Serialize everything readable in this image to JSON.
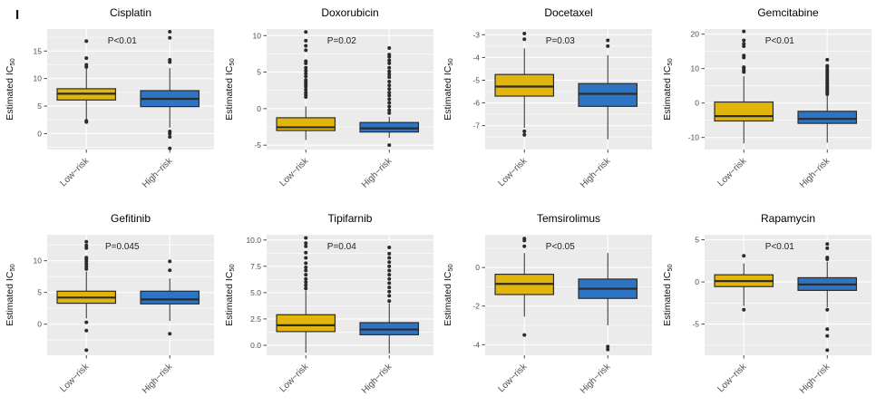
{
  "figure": {
    "panel_label": "I",
    "ylabel_main": "Estimated IC",
    "ylabel_sub": "50",
    "categories": [
      "Low−risk",
      "High−risk"
    ]
  },
  "colors": {
    "low_risk_fill": "#E2B50D",
    "high_risk_fill": "#2E74C4",
    "box_stroke": "#2B2B2B",
    "panel_bg": "#EBEBEB",
    "grid_major": "#FFFFFF",
    "grid_minor": "#F5F5F5",
    "axis_text": "#4D4D4D",
    "title_text": "#000000",
    "p_text": "#222222",
    "outlier": "#2B2B2B"
  },
  "chart_data": [
    {
      "type": "box",
      "title": "Cisplatin",
      "p_label": "P<0.01",
      "ylabel": "Estimated IC50",
      "categories": [
        "Low−risk",
        "High−risk"
      ],
      "ylim": [
        -2.9,
        19.0
      ],
      "ytick_values": [
        0,
        5,
        10,
        15
      ],
      "ytick_labels": [
        "0",
        "5",
        "10",
        "15"
      ],
      "series": [
        {
          "name": "Low−risk",
          "whisker_low": 2.5,
          "q1": 6.1,
          "median": 7.25,
          "q3": 8.15,
          "whisker_high": 11.8,
          "outliers": [
            12.1,
            12.5,
            13.7,
            16.8,
            2.3,
            2.1
          ]
        },
        {
          "name": "High−risk",
          "whisker_low": 1.1,
          "q1": 4.9,
          "median": 6.3,
          "q3": 7.8,
          "whisker_high": 11.9,
          "outliers": [
            13.0,
            13.4,
            17.4,
            18.5,
            0.4,
            0.0,
            -0.6,
            -2.7
          ]
        }
      ]
    },
    {
      "type": "box",
      "title": "Doxorubicin",
      "p_label": "P=0.02",
      "ylabel": "Estimated IC50",
      "categories": [
        "Low−risk",
        "High−risk"
      ],
      "ylim": [
        -5.6,
        10.9
      ],
      "ytick_values": [
        -5,
        0,
        5,
        10
      ],
      "ytick_labels": [
        "-5",
        "0",
        "5",
        "10"
      ],
      "series": [
        {
          "name": "Low−risk",
          "whisker_low": -4.3,
          "q1": -3.0,
          "median": -2.55,
          "q3": -1.25,
          "whisker_high": 0.3,
          "outliers": [
            1.6,
            1.9,
            2.2,
            2.6,
            3.0,
            3.3,
            3.6,
            3.9,
            4.4,
            4.8,
            5.2,
            5.6,
            6.2,
            6.5,
            8.0,
            8.6,
            9.3,
            10.5
          ]
        },
        {
          "name": "High−risk",
          "whisker_low": -4.0,
          "q1": -3.2,
          "median": -2.7,
          "q3": -1.9,
          "whisker_high": -1.1,
          "outliers": [
            -5.0,
            -0.6,
            -0.2,
            0.3,
            0.8,
            1.3,
            1.8,
            2.2,
            2.7,
            3.2,
            3.7,
            4.3,
            4.7,
            5.1,
            5.6,
            6.2,
            6.6,
            7.1,
            7.4,
            8.3
          ]
        }
      ]
    },
    {
      "type": "box",
      "title": "Docetaxel",
      "p_label": "P=0.03",
      "ylabel": "Estimated IC50",
      "categories": [
        "Low−risk",
        "High−risk"
      ],
      "ylim": [
        -8.05,
        -2.75
      ],
      "ytick_values": [
        -7,
        -6,
        -5,
        -4,
        -3
      ],
      "ytick_labels": [
        "-7",
        "-6",
        "-5",
        "-4",
        "-3"
      ],
      "series": [
        {
          "name": "Low−risk",
          "whisker_low": -7.1,
          "q1": -5.7,
          "median": -5.28,
          "q3": -4.75,
          "whisker_high": -3.6,
          "outliers": [
            -2.95,
            -3.2,
            -7.25,
            -7.4
          ]
        },
        {
          "name": "High−risk",
          "whisker_low": -7.6,
          "q1": -6.15,
          "median": -5.6,
          "q3": -5.15,
          "whisker_high": -3.9,
          "outliers": [
            -3.25,
            -3.5
          ]
        }
      ]
    },
    {
      "type": "box",
      "title": "Gemcitabine",
      "p_label": "P<0.01",
      "ylabel": "Estimated IC50",
      "categories": [
        "Low−risk",
        "High−risk"
      ],
      "ylim": [
        -13.5,
        21.5
      ],
      "ytick_values": [
        -10,
        0,
        10,
        20
      ],
      "ytick_labels": [
        "-10",
        "0",
        "10",
        "20"
      ],
      "series": [
        {
          "name": "Low−risk",
          "whisker_low": -11.7,
          "q1": -5.2,
          "median": -3.8,
          "q3": 0.3,
          "whisker_high": 7.8,
          "outliers": [
            9.0,
            9.4,
            10.0,
            10.4,
            13.2,
            13.8,
            16.5,
            17.2,
            18.2,
            20.8
          ]
        },
        {
          "name": "High−risk",
          "whisker_low": -11.5,
          "q1": -5.9,
          "median": -4.6,
          "q3": -2.4,
          "whisker_high": 2.2,
          "outliers": [
            2.6,
            3.0,
            3.5,
            4.0,
            4.5,
            5.0,
            5.5,
            6.0,
            6.6,
            7.2,
            7.8,
            8.4,
            9.0,
            9.6,
            10.3,
            10.8,
            12.6
          ]
        }
      ]
    },
    {
      "type": "box",
      "title": "Gefitinib",
      "p_label": "P=0.045",
      "ylabel": "Estimated IC50",
      "categories": [
        "Low−risk",
        "High−risk"
      ],
      "ylim": [
        -4.9,
        14.1
      ],
      "ytick_values": [
        0,
        5,
        10
      ],
      "ytick_labels": [
        "0",
        "5",
        "10"
      ],
      "series": [
        {
          "name": "Low−risk",
          "whisker_low": 0.9,
          "q1": 3.3,
          "median": 4.2,
          "q3": 5.2,
          "whisker_high": 8.3,
          "outliers": [
            8.7,
            9.1,
            9.5,
            9.9,
            10.2,
            10.5,
            12.0,
            12.4,
            13.0,
            0.3,
            -1.0,
            -4.1
          ]
        },
        {
          "name": "High−risk",
          "whisker_low": 0.5,
          "q1": 3.2,
          "median": 3.9,
          "q3": 5.2,
          "whisker_high": 7.2,
          "outliers": [
            9.9,
            8.5,
            -1.5
          ]
        }
      ]
    },
    {
      "type": "box",
      "title": "Tipifarnib",
      "p_label": "P=0.04",
      "ylabel": "Estimated IC50",
      "categories": [
        "Low−risk",
        "High−risk"
      ],
      "ylim": [
        -0.95,
        10.5
      ],
      "ytick_values": [
        0,
        2.5,
        5,
        7.5,
        10
      ],
      "ytick_labels": [
        "0.0",
        "2.5",
        "5.0",
        "7.5",
        "10.0"
      ],
      "series": [
        {
          "name": "Low−risk",
          "whisker_low": -0.7,
          "q1": 1.3,
          "median": 1.9,
          "q3": 2.9,
          "whisker_high": 5.2,
          "outliers": [
            5.4,
            5.7,
            6.0,
            6.3,
            6.7,
            7.1,
            7.4,
            7.8,
            8.3,
            8.8,
            9.4,
            9.7,
            10.2
          ]
        },
        {
          "name": "High−risk",
          "whisker_low": -0.8,
          "q1": 1.0,
          "median": 1.5,
          "q3": 2.15,
          "whisker_high": 4.0,
          "outliers": [
            4.2,
            4.7,
            5.1,
            5.5,
            5.9,
            6.3,
            6.7,
            7.1,
            7.5,
            7.9,
            8.3,
            8.7,
            9.3
          ]
        }
      ]
    },
    {
      "type": "box",
      "title": "Temsirolimus",
      "p_label": "P<0.05",
      "ylabel": "Estimated IC50",
      "categories": [
        "Low−risk",
        "High−risk"
      ],
      "ylim": [
        -4.55,
        1.7
      ],
      "ytick_values": [
        -4,
        -2,
        0
      ],
      "ytick_labels": [
        "-4",
        "-2",
        "0"
      ],
      "series": [
        {
          "name": "Low−risk",
          "whisker_low": -2.55,
          "q1": -1.4,
          "median": -0.85,
          "q3": -0.35,
          "whisker_high": 0.75,
          "outliers": [
            1.1,
            1.4,
            1.5,
            -3.5
          ]
        },
        {
          "name": "High−risk",
          "whisker_low": -3.0,
          "q1": -1.6,
          "median": -1.1,
          "q3": -0.6,
          "whisker_high": 0.75,
          "outliers": [
            -4.1,
            -4.25
          ]
        }
      ]
    },
    {
      "type": "box",
      "title": "Rapamycin",
      "p_label": "P<0.01",
      "ylabel": "Estimated IC50",
      "categories": [
        "Low−risk",
        "High−risk"
      ],
      "ylim": [
        -8.7,
        5.6
      ],
      "ytick_values": [
        -5,
        0,
        5
      ],
      "ytick_labels": [
        "-5",
        "0",
        "5"
      ],
      "series": [
        {
          "name": "Low−risk",
          "whisker_low": -2.85,
          "q1": -0.55,
          "median": 0.1,
          "q3": 0.85,
          "whisker_high": 2.2,
          "outliers": [
            3.1,
            -3.3
          ]
        },
        {
          "name": "High−risk",
          "whisker_low": -3.0,
          "q1": -1.0,
          "median": -0.3,
          "q3": 0.5,
          "whisker_high": 2.4,
          "outliers": [
            4.5,
            4.0,
            2.9,
            2.7,
            -3.3,
            -5.6,
            -6.4,
            -8.1
          ]
        }
      ]
    }
  ]
}
